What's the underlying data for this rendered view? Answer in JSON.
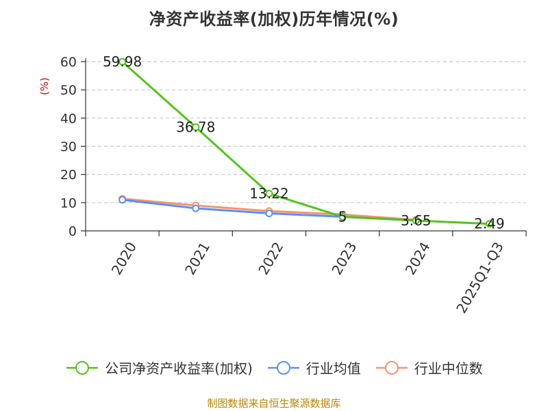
{
  "title": "净资产收益率(加权)历年情况(%)",
  "source": "制图数据来自恒生聚源数据库",
  "chart_data": {
    "type": "line",
    "categories": [
      "2020",
      "2021",
      "2022",
      "2023",
      "2024",
      "2025Q1-Q3"
    ],
    "ylabel": "(%)",
    "ylim": [
      0,
      60
    ],
    "yticks": [
      0,
      10,
      20,
      30,
      40,
      50,
      60
    ],
    "grid": true,
    "legend_position": "bottom",
    "series": [
      {
        "name": "公司净资产收益率(加权)",
        "color": "#52c41a",
        "values": [
          59.98,
          36.78,
          13.22,
          5,
          3.65,
          2.49
        ],
        "labels": [
          "59.98",
          "36.78",
          "13.22",
          "5",
          "3.65",
          "2.49"
        ]
      },
      {
        "name": "行业均值",
        "color": "#5b8ff9",
        "values": [
          11.0,
          8.0,
          6.2,
          5.0,
          3.7,
          null
        ]
      },
      {
        "name": "行业中位数",
        "color": "#f4956b",
        "values": [
          11.4,
          9.0,
          7.0,
          5.8,
          3.9,
          null
        ]
      }
    ]
  }
}
